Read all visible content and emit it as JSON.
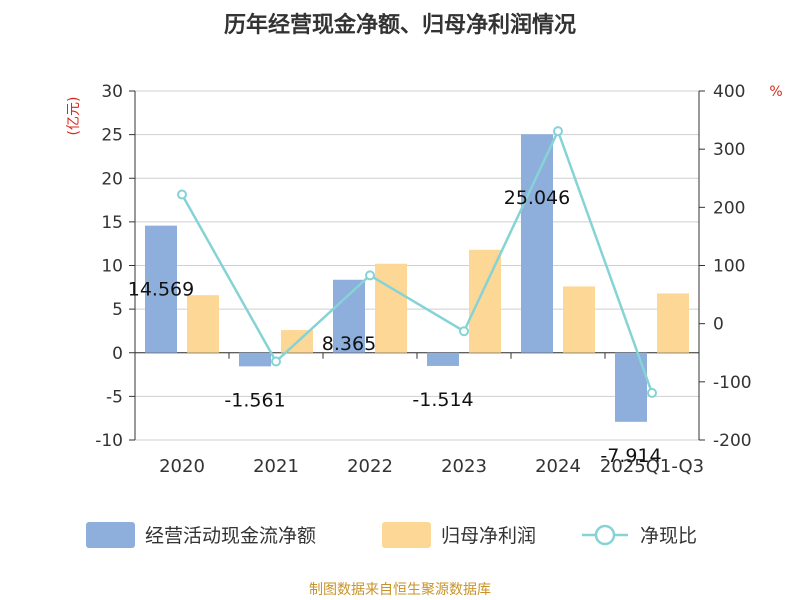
{
  "chart_data": {
    "type": "bar",
    "title": "历年经营现金净额、归母净利润情况",
    "categories": [
      "2020",
      "2021",
      "2022",
      "2023",
      "2024",
      "2025Q1-Q3"
    ],
    "series": [
      {
        "name": "经营活动现金流净额",
        "axis": "left",
        "kind": "bar",
        "color": "#8eaedb",
        "values": [
          14.569,
          -1.561,
          8.365,
          -1.514,
          25.046,
          -7.914
        ]
      },
      {
        "name": "归母净利润",
        "axis": "left",
        "kind": "bar",
        "color": "#fdd796",
        "values": [
          6.6,
          2.6,
          10.2,
          11.8,
          7.6,
          6.8
        ]
      },
      {
        "name": "净现比",
        "axis": "right",
        "kind": "line",
        "color": "#86d3d6",
        "values": [
          222,
          -65,
          83,
          -13,
          331,
          -119
        ]
      }
    ],
    "data_labels": [
      "14.569",
      "-1.561",
      "8.365",
      "-1.514",
      "25.046",
      "-7.914"
    ],
    "left_axis": {
      "unit": "(亿元)",
      "ylim": [
        -10,
        30
      ],
      "ticks": [
        "30",
        "25",
        "20",
        "15",
        "10",
        "5",
        "0",
        "-5",
        "-10"
      ]
    },
    "right_axis": {
      "unit": "%",
      "ylim": [
        -200,
        400
      ],
      "ticks": [
        "400",
        "300",
        "200",
        "100",
        "0",
        "-100",
        "-200"
      ]
    },
    "legend_position": "bottom",
    "grid": true
  },
  "source": "制图数据来自恒生聚源数据库"
}
